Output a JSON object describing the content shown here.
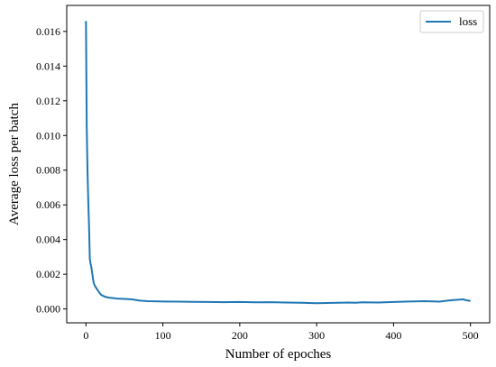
{
  "chart_data": {
    "type": "line",
    "xlabel": "Number of epoches",
    "ylabel": "Average loss per batch",
    "xlim": [
      -25,
      525
    ],
    "ylim": [
      -0.0008,
      0.0175
    ],
    "xticks": [
      0,
      100,
      200,
      300,
      400,
      500
    ],
    "yticks": [
      0.0,
      0.002,
      0.004,
      0.006,
      0.008,
      0.01,
      0.012,
      0.014,
      0.016
    ],
    "ytick_labels": [
      "0.000",
      "0.002",
      "0.004",
      "0.006",
      "0.008",
      "0.010",
      "0.012",
      "0.014",
      "0.016"
    ],
    "xtick_labels": [
      "0",
      "100",
      "200",
      "300",
      "400",
      "500"
    ],
    "grid": false,
    "legend_position": "top-right",
    "series": [
      {
        "name": "loss",
        "color": "#1f77b4",
        "x": [
          0,
          1,
          2,
          3,
          4,
          5,
          6,
          7,
          8,
          10,
          12,
          15,
          18,
          20,
          25,
          30,
          40,
          50,
          60,
          70,
          80,
          90,
          100,
          120,
          140,
          160,
          180,
          200,
          220,
          240,
          260,
          280,
          300,
          320,
          340,
          350,
          360,
          380,
          400,
          420,
          440,
          460,
          470,
          480,
          490,
          495,
          500
        ],
        "y": [
          0.0166,
          0.0105,
          0.008,
          0.0062,
          0.0048,
          0.0029,
          0.0026,
          0.0024,
          0.0021,
          0.0015,
          0.0013,
          0.0011,
          0.0009,
          0.0008,
          0.0007,
          0.00065,
          0.0006,
          0.00058,
          0.00055,
          0.00048,
          0.00045,
          0.00044,
          0.00043,
          0.00042,
          0.00041,
          0.0004,
          0.00039,
          0.0004,
          0.00038,
          0.00039,
          0.00037,
          0.00036,
          0.00033,
          0.00035,
          0.00037,
          0.00036,
          0.00038,
          0.00037,
          0.0004,
          0.00043,
          0.00045,
          0.00042,
          0.00048,
          0.00052,
          0.00055,
          0.0005,
          0.00046
        ]
      }
    ]
  }
}
